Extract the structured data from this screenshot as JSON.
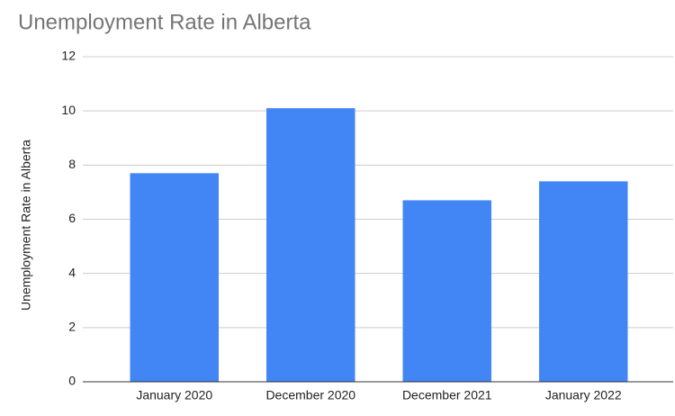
{
  "chart_data": {
    "type": "bar",
    "title": "Unemployment Rate in Alberta",
    "y_label": "Unemployment Rate in Alberta",
    "categories": [
      "January 2020",
      "December 2020",
      "December 2021",
      "January 2022"
    ],
    "values": [
      7.7,
      10.1,
      6.7,
      7.4
    ],
    "color": "#4285f4",
    "ylim": [
      0,
      12
    ],
    "yticks": [
      0,
      2,
      4,
      6,
      8,
      10,
      12
    ],
    "grid": true
  }
}
